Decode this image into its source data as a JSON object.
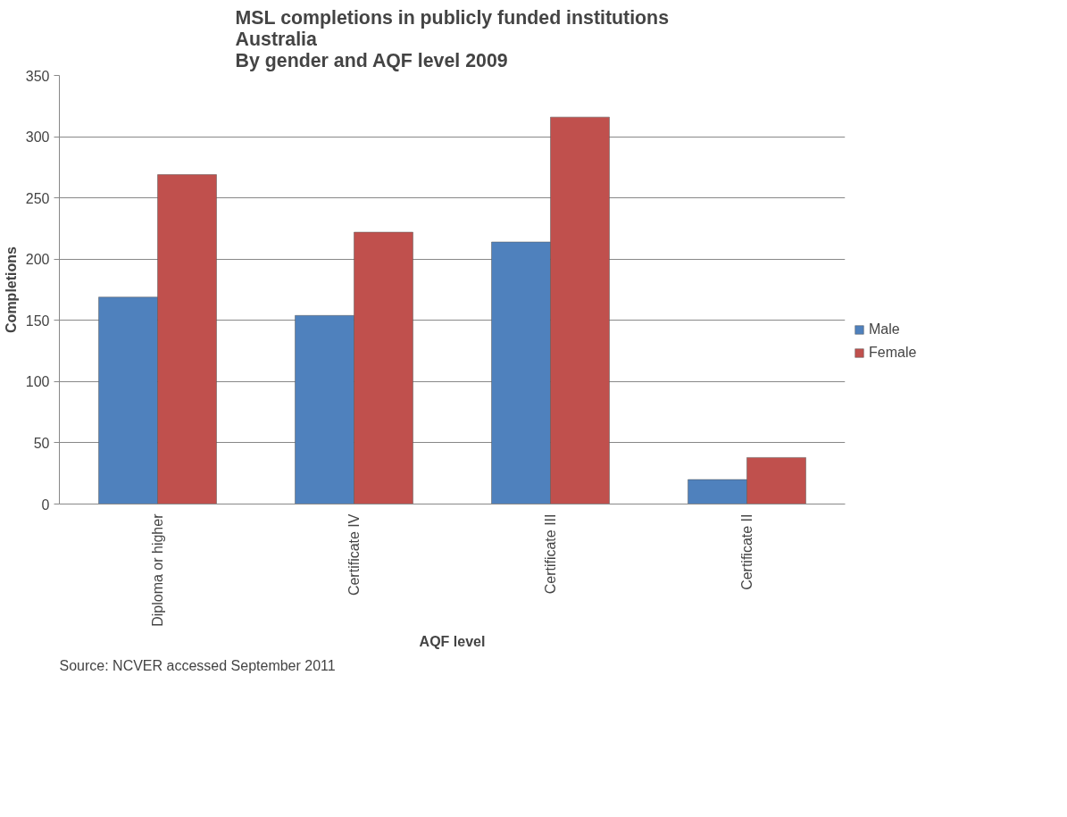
{
  "chart_data": {
    "type": "bar",
    "title": "MSL completions in publicly funded institutions\nAustralia\nBy gender and AQF level 2009",
    "xlabel": "AQF level",
    "ylabel": "Completions",
    "categories": [
      "Diploma or higher",
      "Certificate IV",
      "Certificate III",
      "Certificate II"
    ],
    "series": [
      {
        "name": "Male",
        "color": "#4f81bd",
        "values": [
          169,
          154,
          214,
          20
        ]
      },
      {
        "name": "Female",
        "color": "#c0504d",
        "values": [
          269,
          222,
          316,
          38
        ]
      }
    ],
    "ylim": [
      0,
      350
    ],
    "yticks": [
      0,
      50,
      100,
      150,
      200,
      250,
      300,
      350
    ],
    "grid": "y",
    "legend": "right",
    "annotations": [
      "Source: NCVER accessed September 2011"
    ]
  }
}
